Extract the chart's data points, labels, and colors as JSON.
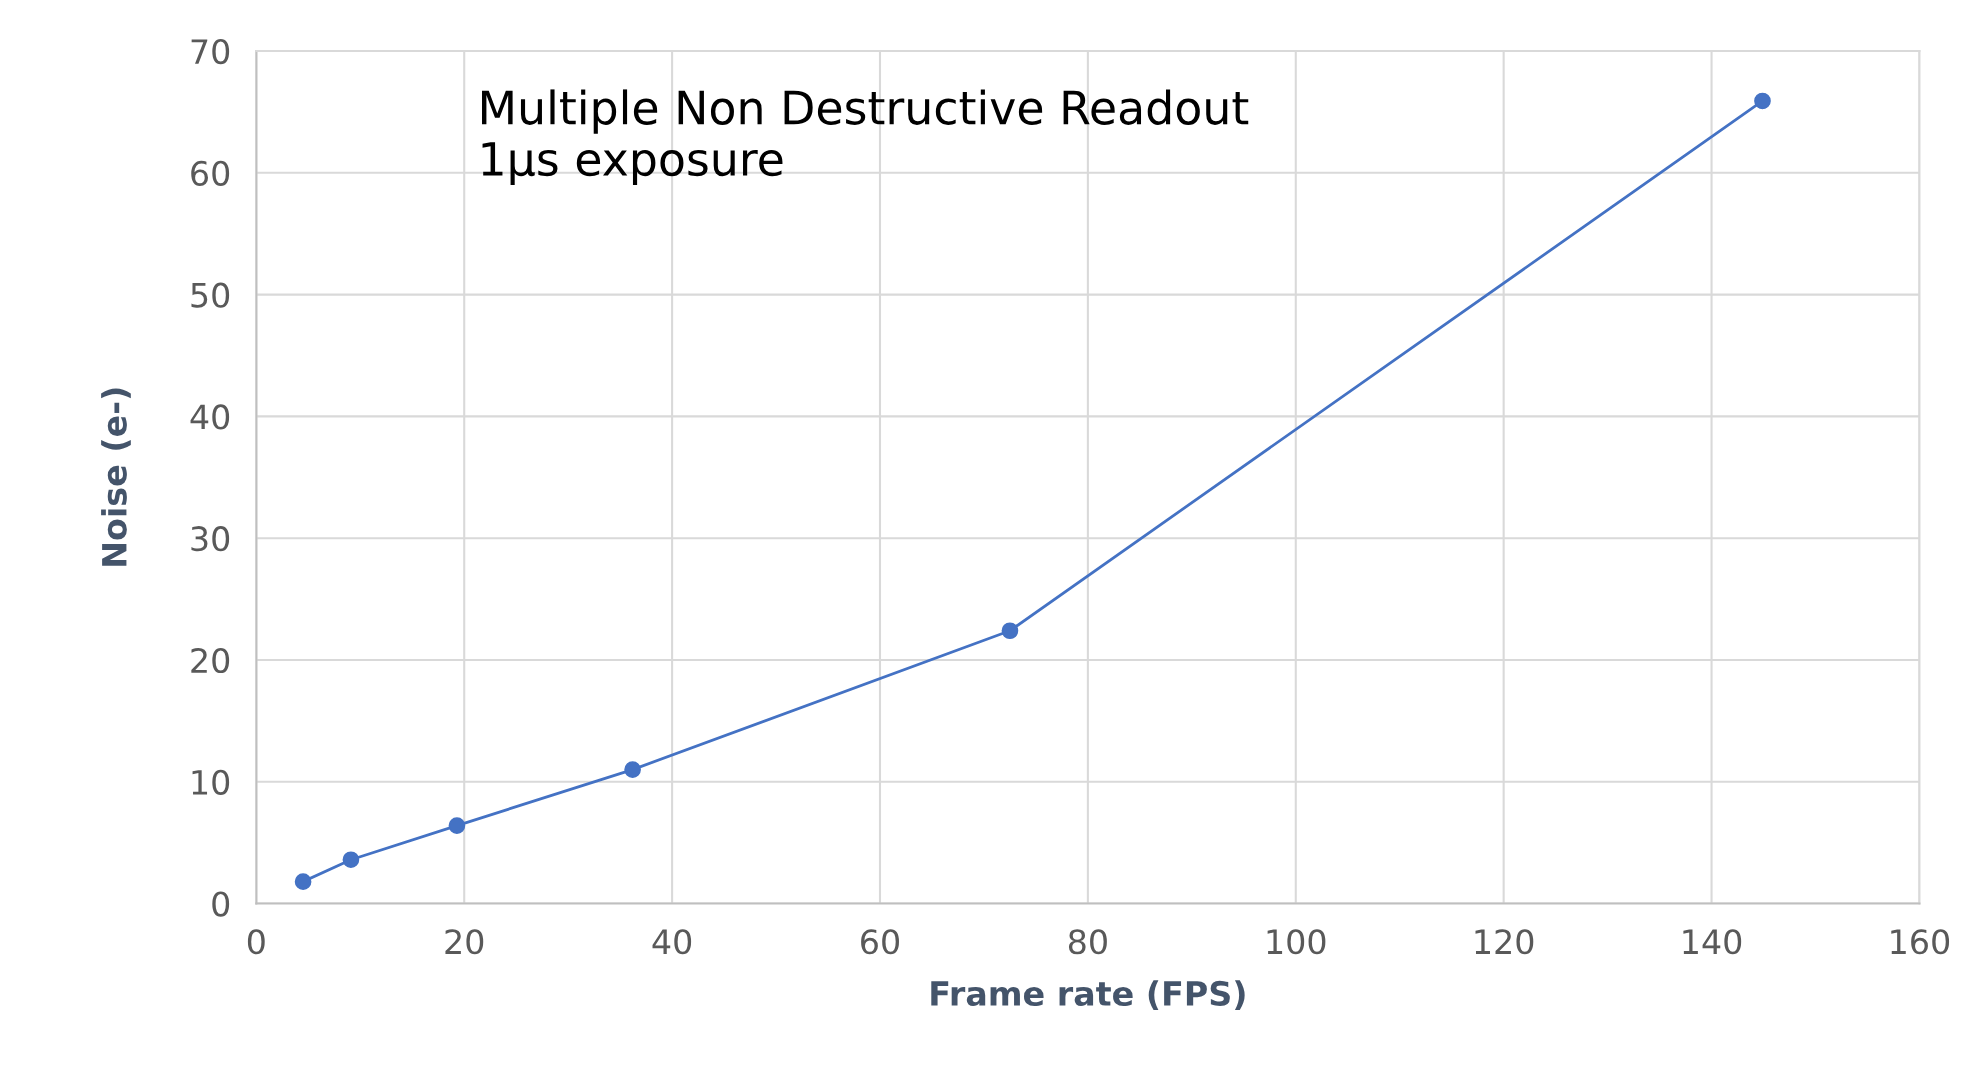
{
  "chart_data": {
    "type": "line",
    "xlabel": "Frame rate (FPS)",
    "ylabel": "Noise (e-)",
    "annotations": [
      "Multiple Non Destructive Readout\n1µs exposure"
    ],
    "series": [
      {
        "color": "#4472c4",
        "x": [
          4.5,
          9.1,
          19.3,
          36.2,
          72.5,
          144.9
        ],
        "values": [
          1.8,
          3.6,
          6.4,
          11.0,
          22.4,
          65.9
        ]
      }
    ],
    "xlim": [
      0,
      160
    ],
    "xticks": [
      0,
      20,
      40,
      60,
      80,
      100,
      120,
      140,
      160
    ],
    "ylim": [
      0,
      70
    ],
    "yticks": [
      0,
      10,
      20,
      30,
      40,
      50,
      60,
      70
    ],
    "grid": true,
    "marker": "circle",
    "line_style": "solid",
    "legend": false
  }
}
